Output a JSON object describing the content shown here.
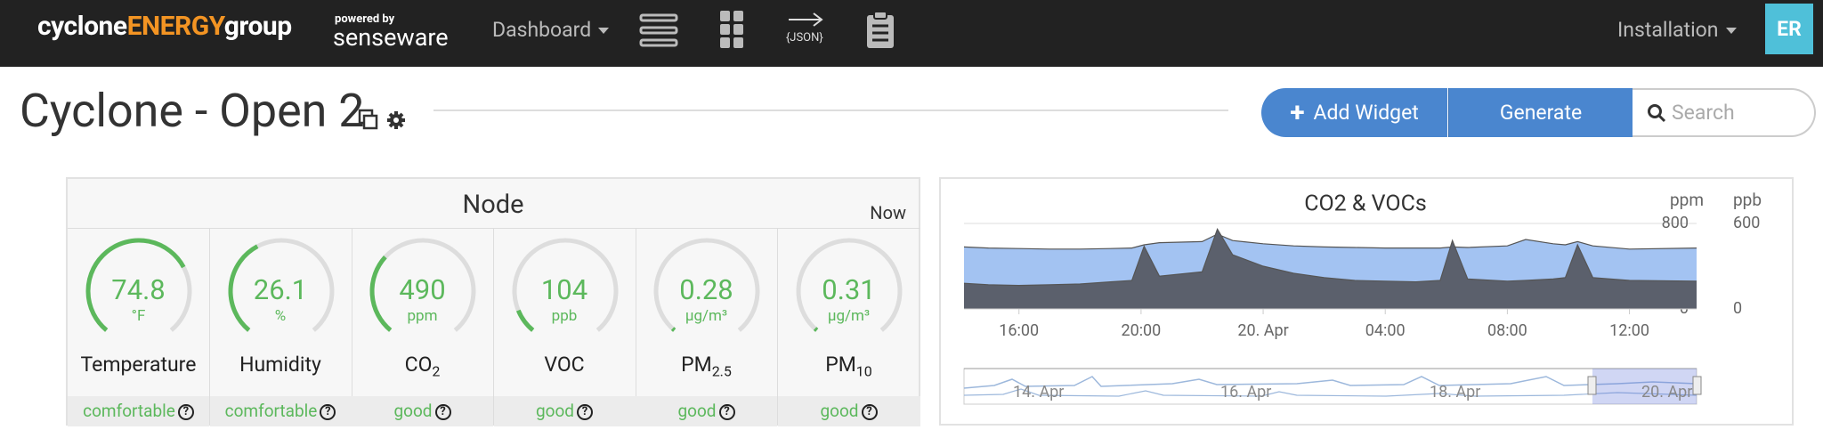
{
  "header": {
    "logo": {
      "part1": "cyclone",
      "part2": "ENERGY",
      "part3": "group"
    },
    "powered_by": "powered by",
    "brand": "senseware",
    "dashboard": "Dashboard",
    "json": "{JSON}",
    "installation": "Installation",
    "avatar": "ER"
  },
  "page": {
    "title": "Cyclone - Open 2",
    "add_widget": "Add Widget",
    "generate": "Generate",
    "search_placeholder": "Search"
  },
  "node_widget": {
    "title": "Node",
    "time": "Now",
    "gauges": [
      {
        "value": 74.8,
        "unit": "°F",
        "label": "Temperature",
        "status": "comfortable"
      },
      {
        "value": 26.1,
        "unit": "%",
        "label": "Humidity",
        "status": "comfortable"
      },
      {
        "value": 490,
        "unit": "ppm",
        "label": "CO",
        "label_sub": "2",
        "status": "good"
      },
      {
        "value": 104,
        "unit": "ppb",
        "label": "VOC",
        "status": "good"
      },
      {
        "value": 0.28,
        "unit": "µg/m³",
        "label": "PM",
        "label_sub": "2.5",
        "status": "good"
      },
      {
        "value": 0.31,
        "unit": "µg/m³",
        "label": "PM",
        "label_sub": "10",
        "status": "good"
      }
    ]
  },
  "chart_data": {
    "type": "area",
    "title": "CO2 & VOCs",
    "y_label": "ppm",
    "y2_label": "ppb",
    "x": [
      14.2,
      15,
      16,
      17,
      18,
      19,
      19.7,
      20.1,
      20.6,
      22,
      22.5,
      23,
      24,
      25,
      26,
      27,
      28,
      29,
      29.8,
      30.2,
      30.7,
      32,
      32.6,
      33.5,
      33.9,
      34.3,
      34.8,
      36,
      38.2
    ],
    "xlim": [
      14.2,
      38.2
    ],
    "xticks": [
      {
        "value": 16,
        "label": "16:00"
      },
      {
        "value": 20,
        "label": "20:00"
      },
      {
        "value": 24,
        "label": "20. Apr"
      },
      {
        "value": 28,
        "label": "04:00"
      },
      {
        "value": 32,
        "label": "08:00"
      },
      {
        "value": 36,
        "label": "12:00"
      }
    ],
    "ylim": [
      0,
      800
    ],
    "yticks": [
      0,
      800
    ],
    "y2lim": [
      0,
      600
    ],
    "y2ticks": [
      0,
      600
    ],
    "grid": true,
    "series": [
      {
        "color": "#a3c3f2",
        "values": [
          580,
          570,
          565,
          560,
          560,
          565,
          570,
          600,
          620,
          630,
          700,
          640,
          610,
          590,
          580,
          575,
          570,
          570,
          570,
          580,
          575,
          590,
          650,
          610,
          600,
          630,
          590,
          560,
          570
        ]
      },
      {
        "color": "#5b606c",
        "axis": "y2",
        "values": [
          180,
          170,
          165,
          170,
          175,
          190,
          200,
          440,
          230,
          260,
          560,
          380,
          300,
          250,
          220,
          200,
          195,
          190,
          200,
          480,
          210,
          195,
          200,
          210,
          220,
          450,
          220,
          200,
          195
        ]
      }
    ],
    "navigator_labels": [
      "14. Apr",
      "16. Apr",
      "18. Apr",
      "20. Apr"
    ]
  }
}
